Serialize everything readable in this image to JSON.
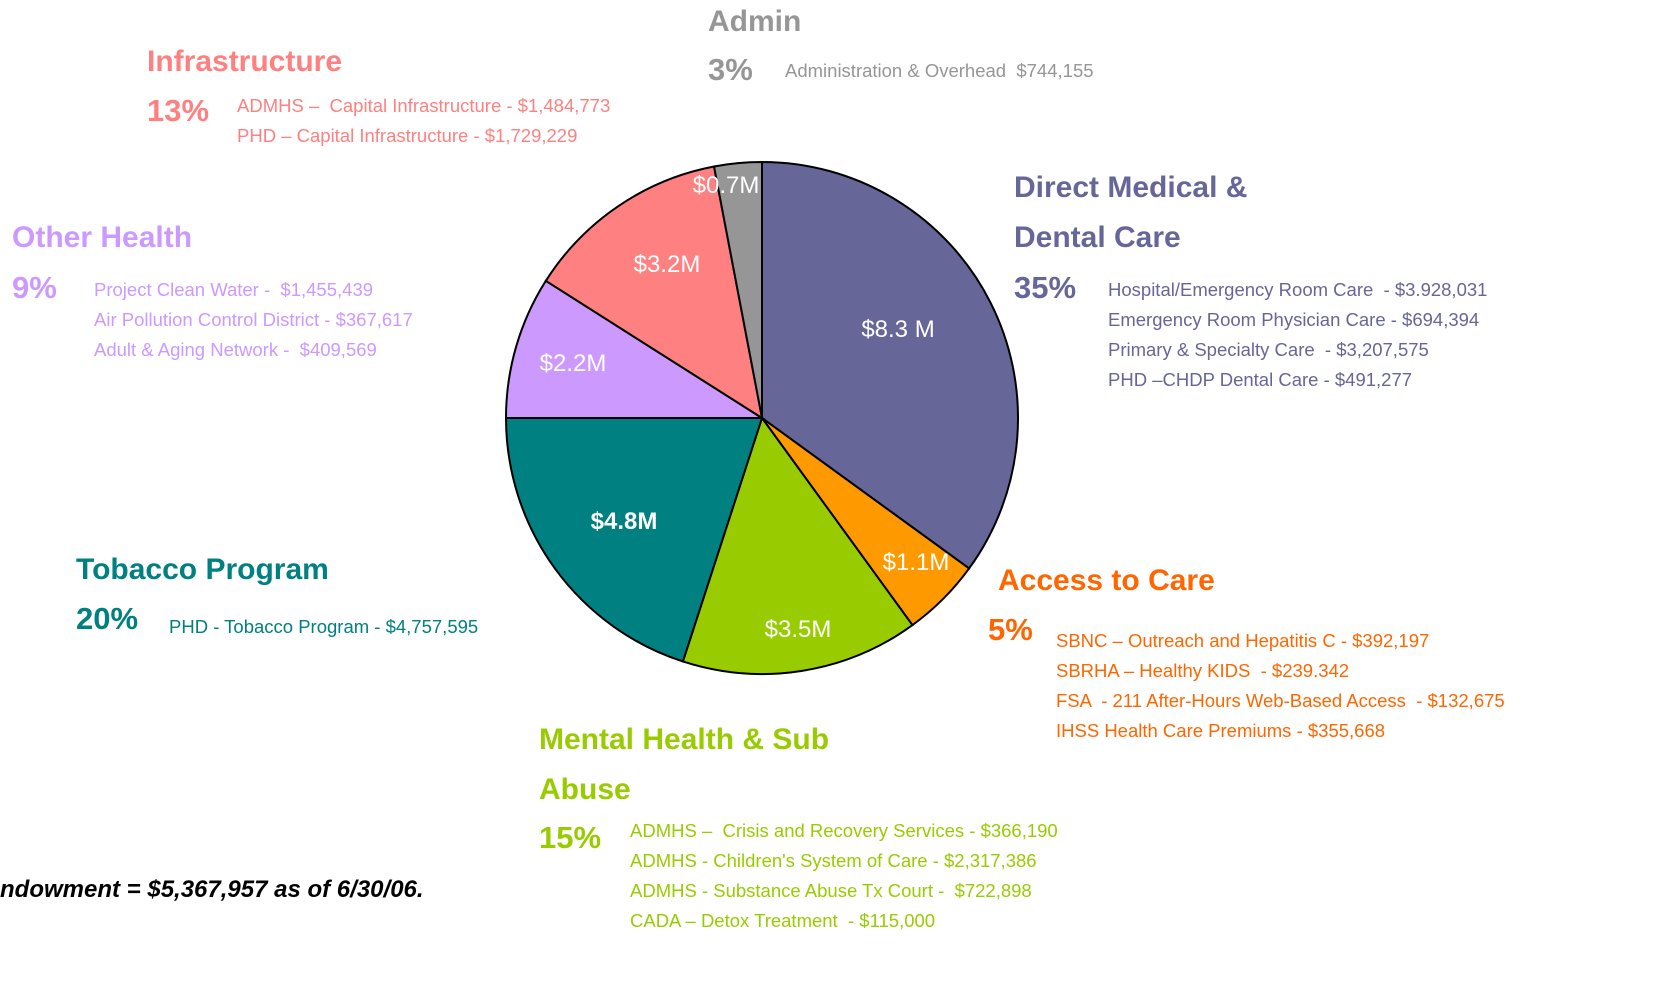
{
  "chart_data": {
    "type": "pie",
    "categories": [
      "Direct Medical & Dental Care",
      "Access to Care",
      "Mental Health & Sub Abuse",
      "Tobacco Program",
      "Other Health",
      "Infrastructure",
      "Admin"
    ],
    "values": [
      35,
      5,
      15,
      20,
      9,
      13,
      3
    ],
    "value_labels": [
      "35%",
      "5%",
      "15%",
      "20%",
      "9%",
      "13%",
      "3%"
    ],
    "slice_labels": [
      "$8.3 M",
      "$1.1M",
      "$3.5M",
      "$4.8M",
      "$2.2M",
      "$3.2M",
      "$0.7M"
    ],
    "colors": [
      "#666699",
      "#FF9900",
      "#99CC00",
      "#008080",
      "#CC99FF",
      "#FF8080",
      "#969696"
    ],
    "text_colors": [
      "#666699",
      "#FF6600",
      "#99CC00",
      "#008080",
      "#CC99FF",
      "#FF8080",
      "#969696"
    ],
    "details": [
      [
        "Hospital/Emergency Room Care  - $3.928,031",
        "Emergency Room Physician Care - $694,394",
        "Primary & Specialty Care  - $3,207,575",
        "PHD –CHDP Dental Care - $491,277"
      ],
      [
        "SBNC – Outreach and Hepatitis C - $392,197",
        "SBRHA – Healthy KIDS  - $239.342",
        "FSA  - 211 After-Hours Web-Based Access  - $132,675",
        "IHSS Health Care Premiums - $355,668"
      ],
      [
        "ADMHS –  Crisis and Recovery Services - $366,190",
        "ADMHS - Children's System of Care - $2,317,386",
        "ADMHS - Substance Abuse Tx Court -  $722,898",
        "CADA – Detox Treatment  - $115,000"
      ],
      [
        "PHD - Tobacco Program - $4,757,595"
      ],
      [
        "Project Clean Water -  $1,455,439",
        "Air Pollution Control District - $367,617",
        "Adult & Aging Network -  $409,569"
      ],
      [
        "ADMHS –  Capital Infrastructure - $1,484,773",
        "PHD – Capital Infrastructure - $1,729,229"
      ],
      [
        "Administration & Overhead  $744,155"
      ]
    ],
    "footnote": "ndowment  = $5,367,957 as of 6/30/06."
  }
}
